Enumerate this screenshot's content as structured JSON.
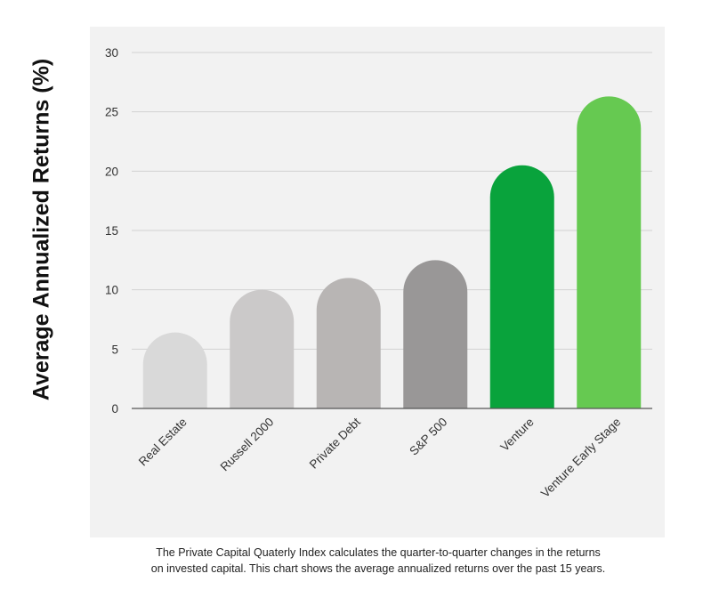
{
  "chart_data": {
    "type": "bar",
    "categories": [
      "Real Estate",
      "Russell 2000",
      "Private Debt",
      "S&P 500",
      "Venture",
      "Venture Early Stage"
    ],
    "values": [
      6.4,
      10.0,
      11.0,
      12.5,
      20.5,
      26.3
    ],
    "colors": [
      "#d9d9d9",
      "#cbc9c9",
      "#b8b5b4",
      "#999797",
      "#09a33c",
      "#66c951"
    ],
    "title": "",
    "xlabel": "",
    "ylabel": "Average Annualized Returns (%)",
    "ylim": [
      0,
      30
    ],
    "yticks": [
      0,
      5,
      10,
      15,
      20,
      25,
      30
    ],
    "grid": true
  },
  "caption": {
    "line1": "The Private Capital Quaterly Index calculates the quarter-to-quarter changes in the returns",
    "line2": "on invested capital. This chart shows the average annualized returns over the past 15 years."
  }
}
